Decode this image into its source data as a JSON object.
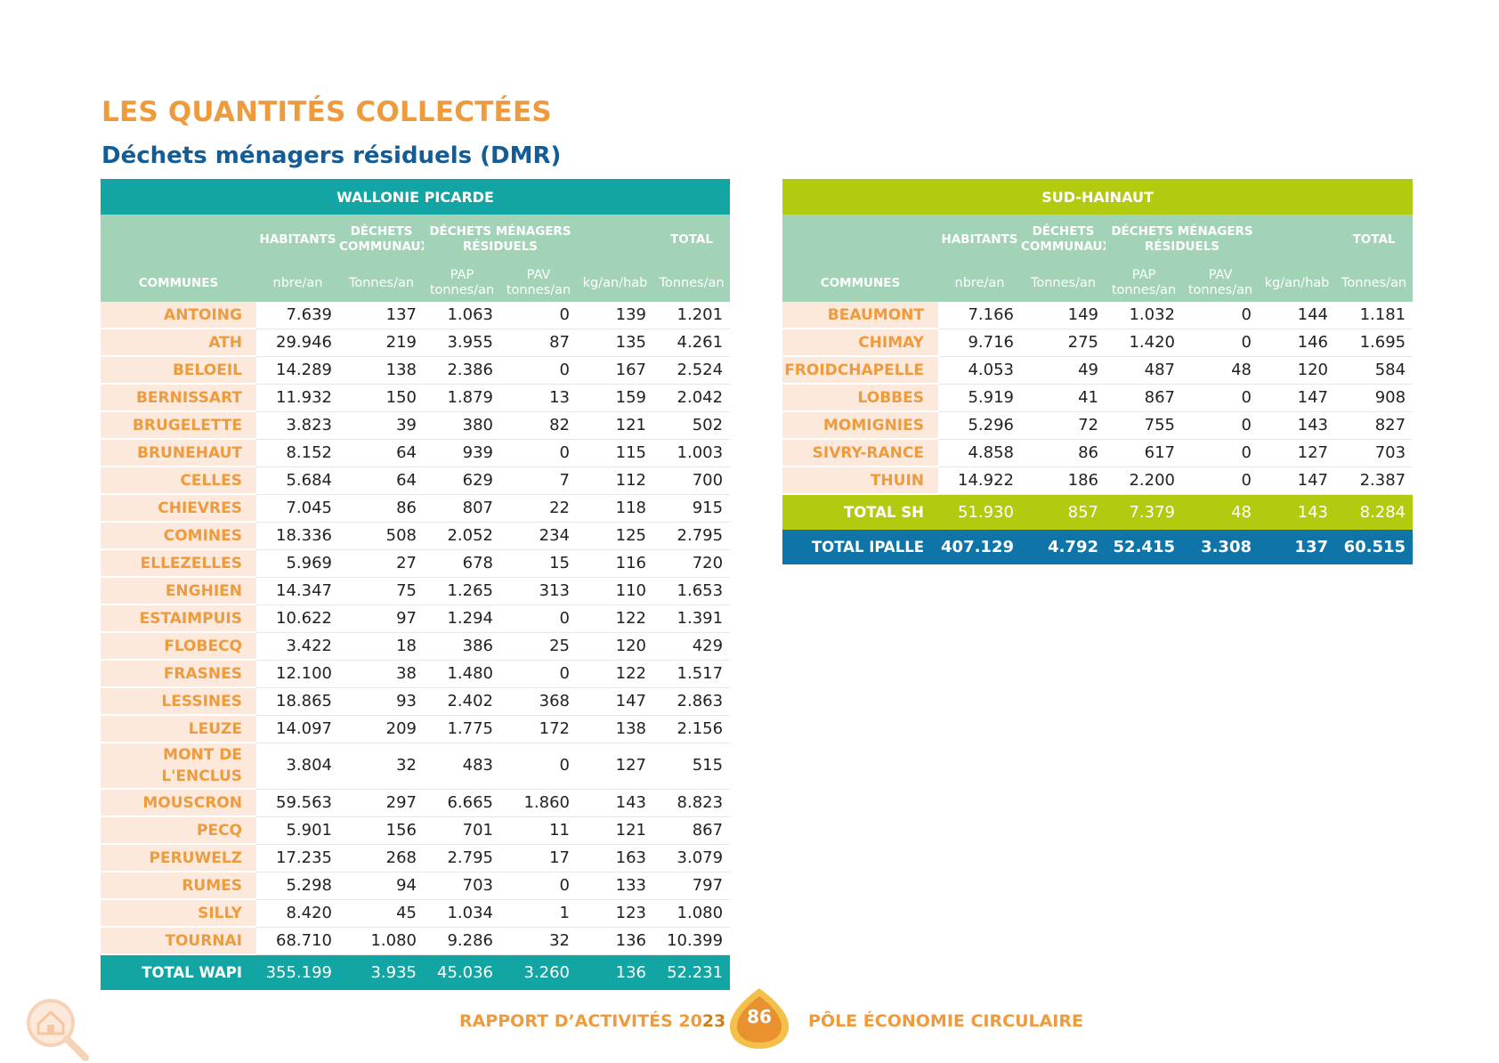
{
  "title": "LES QUANTITÉS COLLECTÉES",
  "subtitle": "Déchets ménagers résiduels (DMR)",
  "headers": {
    "communes": "COMMUNES",
    "habitants": "HABITANTS",
    "dechets_communaux": [
      "DÉCHETS",
      "COMMUNAUX"
    ],
    "dmr": [
      "DÉCHETS MÉNAGERS",
      "RÉSIDUELS"
    ],
    "total": "TOTAL",
    "unit_habitants": "nbre/an",
    "unit_communaux": "Tonnes/an",
    "unit_pap": [
      "PAP",
      "tonnes/an"
    ],
    "unit_pav": [
      "PAV",
      "tonnes/an"
    ],
    "unit_kg": "kg/an/hab",
    "unit_total": "Tonnes/an"
  },
  "wapi": {
    "region": "WALLONIE PICARDE",
    "rows": [
      [
        "ANTOING",
        "7.639",
        "137",
        "1.063",
        "0",
        "139",
        "1.201"
      ],
      [
        "ATH",
        "29.946",
        "219",
        "3.955",
        "87",
        "135",
        "4.261"
      ],
      [
        "BELOEIL",
        "14.289",
        "138",
        "2.386",
        "0",
        "167",
        "2.524"
      ],
      [
        "BERNISSART",
        "11.932",
        "150",
        "1.879",
        "13",
        "159",
        "2.042"
      ],
      [
        "BRUGELETTE",
        "3.823",
        "39",
        "380",
        "82",
        "121",
        "502"
      ],
      [
        "BRUNEHAUT",
        "8.152",
        "64",
        "939",
        "0",
        "115",
        "1.003"
      ],
      [
        "CELLES",
        "5.684",
        "64",
        "629",
        "7",
        "112",
        "700"
      ],
      [
        "CHIEVRES",
        "7.045",
        "86",
        "807",
        "22",
        "118",
        "915"
      ],
      [
        "COMINES",
        "18.336",
        "508",
        "2.052",
        "234",
        "125",
        "2.795"
      ],
      [
        "ELLEZELLES",
        "5.969",
        "27",
        "678",
        "15",
        "116",
        "720"
      ],
      [
        "ENGHIEN",
        "14.347",
        "75",
        "1.265",
        "313",
        "110",
        "1.653"
      ],
      [
        "ESTAIMPUIS",
        "10.622",
        "97",
        "1.294",
        "0",
        "122",
        "1.391"
      ],
      [
        "FLOBECQ",
        "3.422",
        "18",
        "386",
        "25",
        "120",
        "429"
      ],
      [
        "FRASNES",
        "12.100",
        "38",
        "1.480",
        "0",
        "122",
        "1.517"
      ],
      [
        "LESSINES",
        "18.865",
        "93",
        "2.402",
        "368",
        "147",
        "2.863"
      ],
      [
        "LEUZE",
        "14.097",
        "209",
        "1.775",
        "172",
        "138",
        "2.156"
      ],
      [
        "MONT DE L'ENCLUS",
        "3.804",
        "32",
        "483",
        "0",
        "127",
        "515"
      ],
      [
        "MOUSCRON",
        "59.563",
        "297",
        "6.665",
        "1.860",
        "143",
        "8.823"
      ],
      [
        "PECQ",
        "5.901",
        "156",
        "701",
        "11",
        "121",
        "867"
      ],
      [
        "PERUWELZ",
        "17.235",
        "268",
        "2.795",
        "17",
        "163",
        "3.079"
      ],
      [
        "RUMES",
        "5.298",
        "94",
        "703",
        "0",
        "133",
        "797"
      ],
      [
        "SILLY",
        "8.420",
        "45",
        "1.034",
        "1",
        "123",
        "1.080"
      ],
      [
        "TOURNAI",
        "68.710",
        "1.080",
        "9.286",
        "32",
        "136",
        "10.399"
      ]
    ],
    "total": [
      "TOTAL WAPI",
      "355.199",
      "3.935",
      "45.036",
      "3.260",
      "136",
      "52.231"
    ]
  },
  "sh": {
    "region": "SUD-HAINAUT",
    "rows": [
      [
        "BEAUMONT",
        "7.166",
        "149",
        "1.032",
        "0",
        "144",
        "1.181"
      ],
      [
        "CHIMAY",
        "9.716",
        "275",
        "1.420",
        "0",
        "146",
        "1.695"
      ],
      [
        "FROIDCHAPELLE",
        "4.053",
        "49",
        "487",
        "48",
        "120",
        "584"
      ],
      [
        "LOBBES",
        "5.919",
        "41",
        "867",
        "0",
        "147",
        "908"
      ],
      [
        "MOMIGNIES",
        "5.296",
        "72",
        "755",
        "0",
        "143",
        "827"
      ],
      [
        "SIVRY-RANCE",
        "4.858",
        "86",
        "617",
        "0",
        "127",
        "703"
      ],
      [
        "THUIN",
        "14.922",
        "186",
        "2.200",
        "0",
        "147",
        "2.387"
      ]
    ],
    "total": [
      "TOTAL SH",
      "51.930",
      "857",
      "7.379",
      "48",
      "143",
      "8.284"
    ],
    "total_ipalle": [
      "TOTAL IPALLE",
      "407.129",
      "4.792",
      "52.415",
      "3.308",
      "137",
      "60.515"
    ]
  },
  "footer": {
    "left_text": "RAPPORT D’ACTIVITÉS ",
    "year_a": "20",
    "year_b": "23",
    "page": "86",
    "right_text": "PÔLE ÉCONOMIE CIRCULAIRE"
  },
  "colors": {
    "orange": "#EE9B3E",
    "navy": "#145C96",
    "teal": "#12A5A3",
    "lime": "#B3CB0E",
    "mint": "#A2D3B6",
    "peach": "#FCE9DB",
    "blue_total": "#0F75A8"
  },
  "icons": [
    "house-search-icon",
    "page-badge-drop-icon"
  ]
}
